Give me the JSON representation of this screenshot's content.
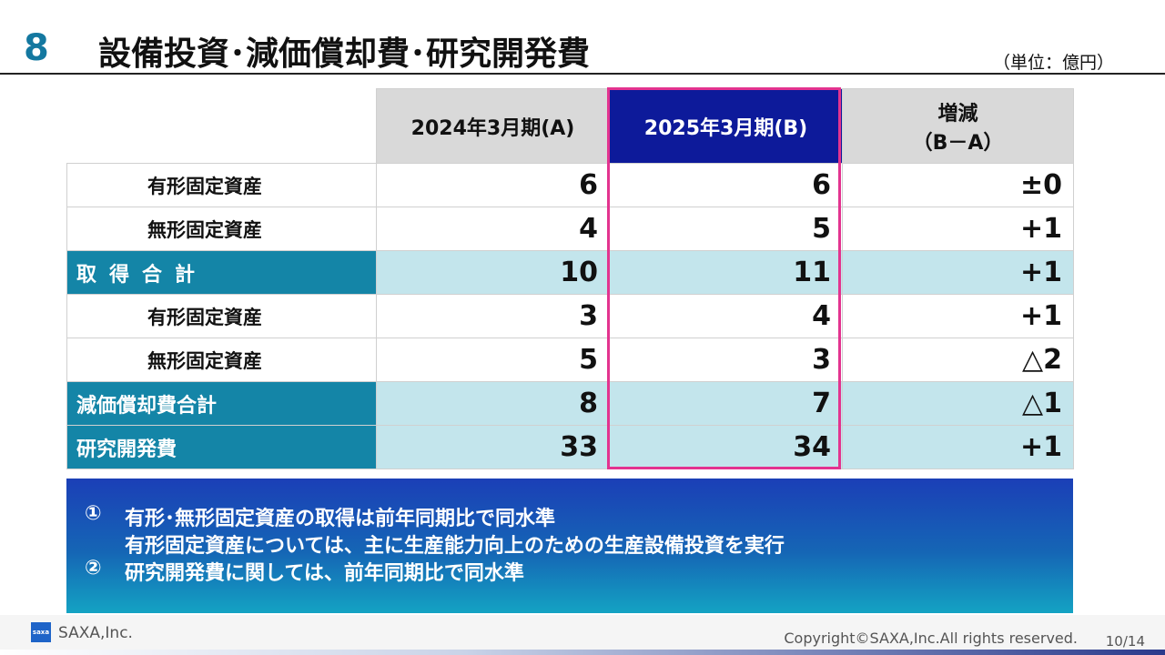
{
  "header": {
    "section_number": "8",
    "title": "設備投資･減価償却費･研究開発費",
    "unit": "（単位：億円）"
  },
  "table": {
    "columns": [
      "2024年3月期(A)",
      "2025年3月期(B)",
      "増減",
      "（B－A）"
    ],
    "rows": [
      {
        "label": "有形固定資産",
        "a": "6",
        "b": "6",
        "diff": "±0"
      },
      {
        "label": "無形固定資産",
        "a": "4",
        "b": "5",
        "diff": "+1"
      },
      {
        "label": "取得合計",
        "a": "10",
        "b": "11",
        "diff": "+1"
      },
      {
        "label": "有形固定資産",
        "a": "3",
        "b": "4",
        "diff": "+1"
      },
      {
        "label": "無形固定資産",
        "a": "5",
        "b": "3",
        "diff": "△2"
      },
      {
        "label": "減価償却費合計",
        "a": "8",
        "b": "7",
        "diff": "△1"
      },
      {
        "label": "研究開発費",
        "a": "33",
        "b": "34",
        "diff": "+1"
      }
    ]
  },
  "notes": [
    {
      "marker": "①",
      "text": "有形･無形固定資産の取得は前年同期比で同水準"
    },
    {
      "marker": "",
      "text": "有形固定資産については、主に生産能力向上のための生産設備投資を実行"
    },
    {
      "marker": "②",
      "text": "研究開発費に関しては、前年同期比で同水準"
    }
  ],
  "footer": {
    "logo_mark": "saxa",
    "company": "SAXA,Inc.",
    "copyright": "Copyright©SAXA,Inc.All rights reserved.",
    "page": "10/14"
  },
  "colors": {
    "accent_teal": "#1478a0",
    "highlight_navy": "#0d1a9a",
    "highlight_border": "#e3338f",
    "total_row": "#c3e5ec"
  }
}
